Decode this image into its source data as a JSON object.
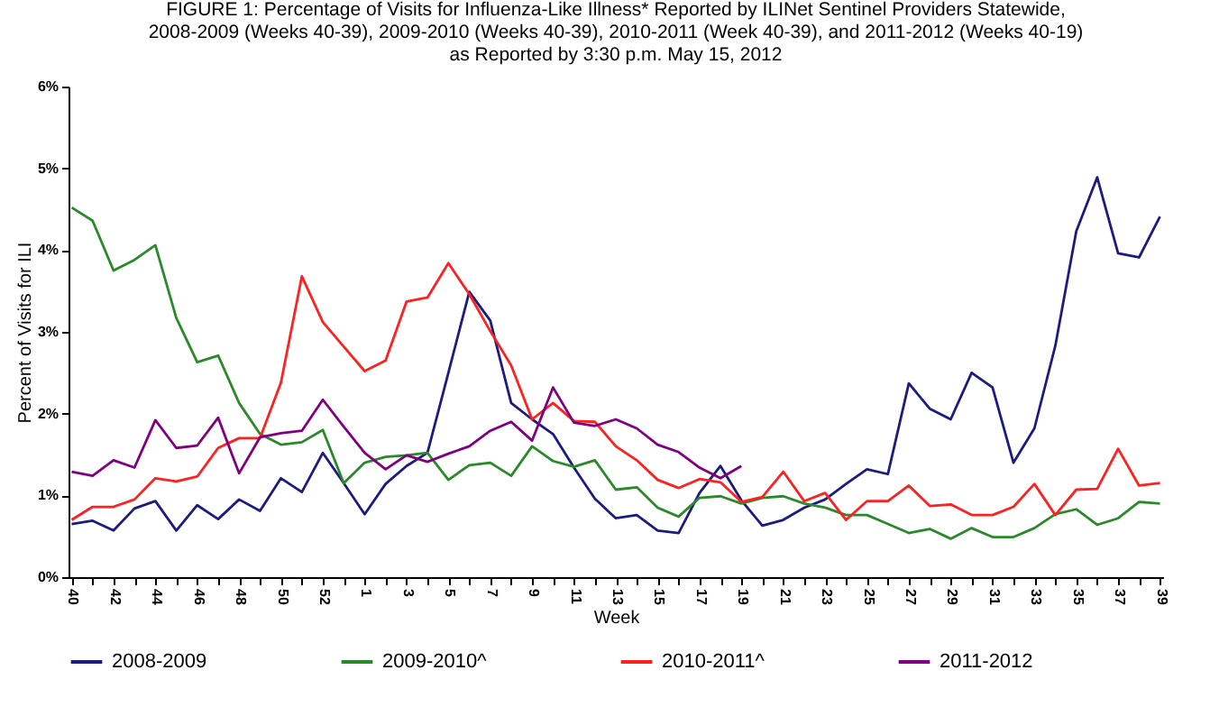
{
  "chart_data": {
    "type": "line",
    "title": [
      "FIGURE 1: Percentage of Visits for Influenza-Like  Illness* Reported by ILINet Sentinel Providers Statewide,",
      "2008-2009  (Weeks 40-39), 2009-2010  (Weeks 40-39),  2010-2011  (Week 40-39), and 2011-2012  (Weeks 40-19)",
      "as Reported by 3:30 p.m. May 15, 2012"
    ],
    "xlabel": "Week",
    "ylabel": "Percent of Visits for ILI",
    "categories": [
      "40",
      null,
      "42",
      null,
      "44",
      null,
      "46",
      null,
      "48",
      null,
      "50",
      null,
      "52",
      null,
      "1",
      null,
      "3",
      null,
      "5",
      null,
      "7",
      null,
      "9",
      null,
      "11",
      null,
      "13",
      null,
      "15",
      null,
      "17",
      null,
      "19",
      null,
      "21",
      null,
      "23",
      null,
      "25",
      null,
      "27",
      null,
      "29",
      null,
      "31",
      null,
      "33",
      null,
      "35",
      null,
      "37",
      null,
      "39"
    ],
    "ylim": [
      0,
      6
    ],
    "yticks": [
      {
        "value": 0,
        "label": "0%"
      },
      {
        "value": 1,
        "label": "1%"
      },
      {
        "value": 2,
        "label": "2%"
      },
      {
        "value": 3,
        "label": "3%"
      },
      {
        "value": 4,
        "label": "4%"
      },
      {
        "value": 5,
        "label": "5%"
      },
      {
        "value": 6,
        "label": "6%"
      }
    ],
    "legend": "bottom",
    "series": [
      {
        "name": "2008-2009",
        "color": "#1c1c80",
        "values": [
          0.65,
          0.69,
          0.57,
          0.84,
          0.93,
          0.57,
          0.88,
          0.71,
          0.95,
          0.81,
          1.21,
          1.04,
          1.52,
          1.15,
          0.77,
          1.14,
          1.36,
          1.52,
          2.5,
          3.49,
          3.14,
          2.13,
          1.93,
          1.75,
          1.34,
          0.96,
          0.72,
          0.76,
          0.57,
          0.54,
          1.03,
          1.36,
          0.94,
          0.63,
          0.7,
          0.85,
          0.95,
          1.14,
          1.32,
          1.26,
          2.37,
          2.06,
          1.93,
          2.5,
          2.32,
          1.4,
          1.82,
          2.83,
          4.23,
          4.89,
          3.96,
          3.91,
          4.41
        ]
      },
      {
        "name": "2009-2010^",
        "color": "#2a8a2a",
        "values": [
          4.52,
          4.36,
          3.75,
          3.88,
          4.06,
          3.17,
          2.63,
          2.71,
          2.13,
          1.75,
          1.62,
          1.65,
          1.8,
          1.15,
          1.4,
          1.47,
          1.49,
          1.52,
          1.19,
          1.37,
          1.4,
          1.24,
          1.6,
          1.42,
          1.35,
          1.43,
          1.07,
          1.1,
          0.85,
          0.74,
          0.97,
          0.99,
          0.9,
          0.97,
          0.99,
          0.9,
          0.85,
          0.76,
          0.76,
          0.65,
          0.54,
          0.59,
          0.47,
          0.6,
          0.49,
          0.49,
          0.6,
          0.77,
          0.83,
          0.64,
          0.72,
          0.92,
          0.9
        ]
      },
      {
        "name": "2010-2011^",
        "color": "#ff2020",
        "values": [
          0.7,
          0.86,
          0.86,
          0.95,
          1.21,
          1.17,
          1.23,
          1.58,
          1.7,
          1.7,
          2.38,
          3.68,
          3.12,
          2.82,
          2.52,
          2.65,
          3.37,
          3.42,
          3.84,
          3.46,
          3.01,
          2.59,
          1.93,
          2.13,
          1.91,
          1.9,
          1.6,
          1.43,
          1.19,
          1.09,
          1.2,
          1.16,
          0.92,
          0.98,
          1.29,
          0.93,
          1.03,
          0.7,
          0.93,
          0.93,
          1.12,
          0.87,
          0.89,
          0.76,
          0.76,
          0.86,
          1.14,
          0.76,
          1.07,
          1.08,
          1.57,
          1.12,
          1.15
        ]
      },
      {
        "name": "2011-2012",
        "color": "#800080",
        "values": [
          1.29,
          1.24,
          1.43,
          1.34,
          1.92,
          1.58,
          1.61,
          1.95,
          1.27,
          1.71,
          1.76,
          1.79,
          2.17,
          1.84,
          1.52,
          1.32,
          1.49,
          1.41,
          1.51,
          1.6,
          1.79,
          1.9,
          1.67,
          2.32,
          1.89,
          1.85,
          1.93,
          1.82,
          1.62,
          1.53,
          1.34,
          1.21,
          1.36,
          null,
          null,
          null,
          null,
          null,
          null,
          null,
          null,
          null,
          null,
          null,
          null,
          null,
          null,
          null,
          null,
          null,
          null,
          null,
          null
        ]
      }
    ]
  }
}
